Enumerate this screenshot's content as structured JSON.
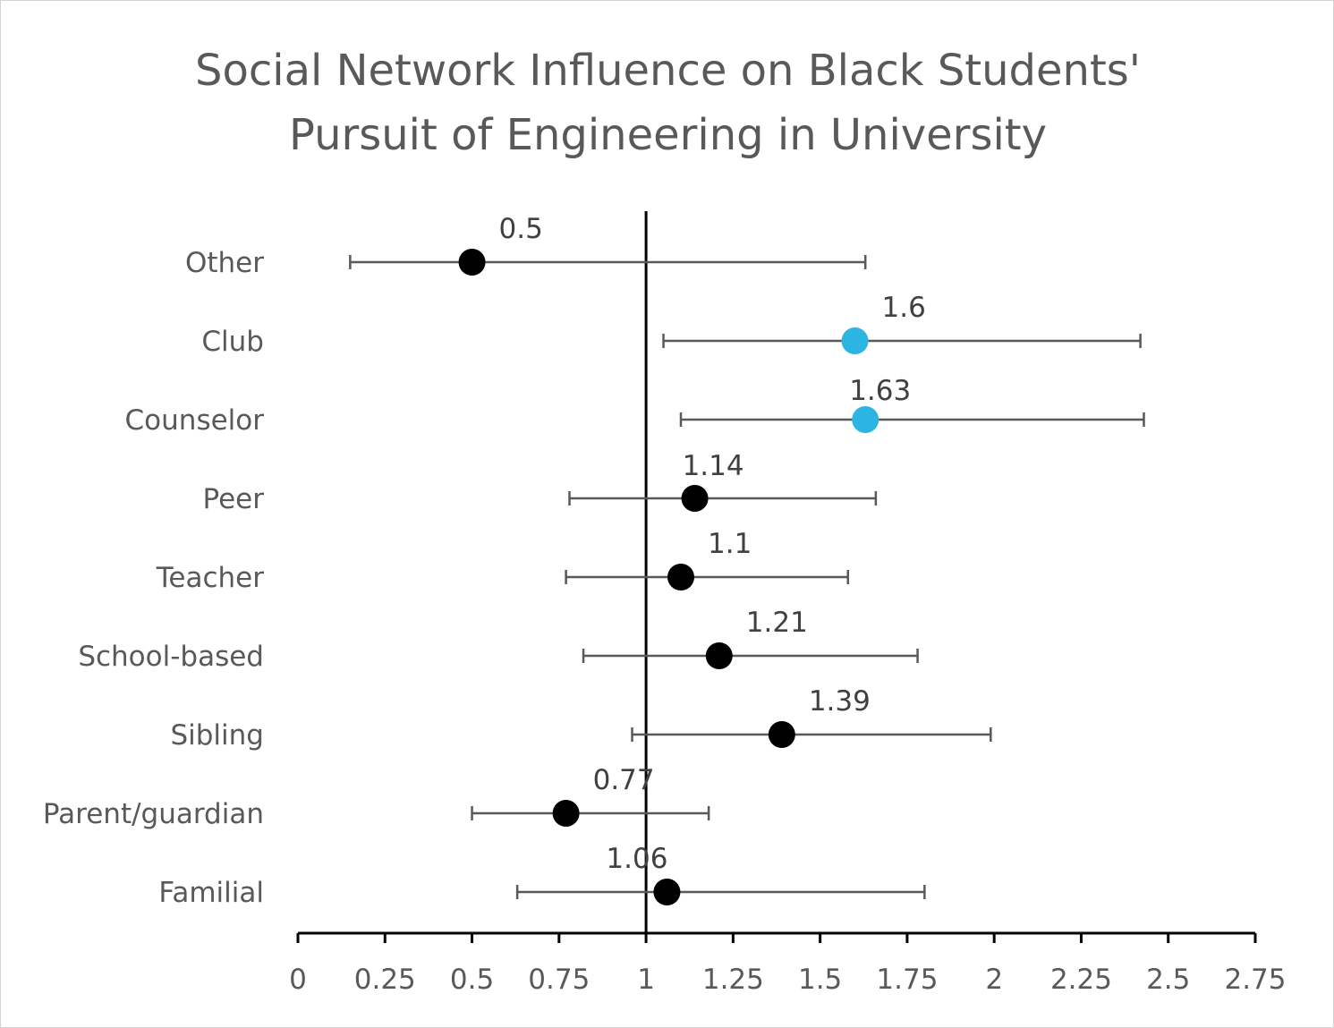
{
  "chart_data": {
    "type": "scatter",
    "subtype": "forest-plot",
    "title_line1": "Social Network Influence on Black Students'",
    "title_line2": "Pursuit of Engineering in University",
    "xlabel": "",
    "ylabel": "",
    "xlim": [
      0,
      2.75
    ],
    "x_ticks": [
      "0",
      "0.25",
      "0.5",
      "0.75",
      "1",
      "1.25",
      "1.5",
      "1.75",
      "2",
      "2.25",
      "2.5",
      "2.75"
    ],
    "reference_line": 1,
    "grid": false,
    "legend": "none",
    "colors": {
      "default_point": "#000000",
      "highlight_point": "#2cb5e3",
      "error_bar": "#595959",
      "axis": "#000000",
      "text": "#595959"
    },
    "categories": [
      "Other",
      "Club",
      "Counselor",
      "Peer",
      "Teacher",
      "School-based",
      "Sibling",
      "Parent/guardian",
      "Familial"
    ],
    "points": [
      {
        "category": "Other",
        "value": 0.5,
        "label": "0.5",
        "ci_low": 0.15,
        "ci_high": 1.63,
        "highlight": false
      },
      {
        "category": "Club",
        "value": 1.6,
        "label": "1.6",
        "ci_low": 1.05,
        "ci_high": 2.42,
        "highlight": true
      },
      {
        "category": "Counselor",
        "value": 1.63,
        "label": "1.63",
        "ci_low": 1.1,
        "ci_high": 2.43,
        "highlight": true
      },
      {
        "category": "Peer",
        "value": 1.14,
        "label": "1.14",
        "ci_low": 0.78,
        "ci_high": 1.66,
        "highlight": false
      },
      {
        "category": "Teacher",
        "value": 1.1,
        "label": "1.1",
        "ci_low": 0.77,
        "ci_high": 1.58,
        "highlight": false
      },
      {
        "category": "School-based",
        "value": 1.21,
        "label": "1.21",
        "ci_low": 0.82,
        "ci_high": 1.78,
        "highlight": false
      },
      {
        "category": "Sibling",
        "value": 1.39,
        "label": "1.39",
        "ci_low": 0.96,
        "ci_high": 1.99,
        "highlight": false
      },
      {
        "category": "Parent/guardian",
        "value": 0.77,
        "label": "0.77",
        "ci_low": 0.5,
        "ci_high": 1.18,
        "highlight": false
      },
      {
        "category": "Familial",
        "value": 1.06,
        "label": "1.06",
        "ci_low": 0.63,
        "ci_high": 1.8,
        "highlight": false
      }
    ]
  }
}
